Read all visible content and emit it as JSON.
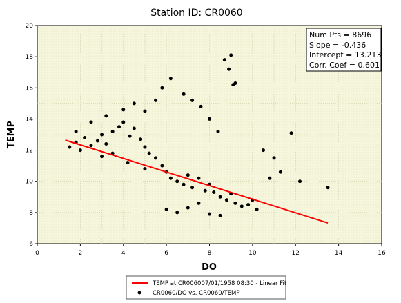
{
  "chart_data": {
    "type": "scatter",
    "title": "Station ID: CR0060",
    "xlabel": "DO",
    "ylabel": "TEMP",
    "xlim": [
      0,
      16
    ],
    "ylim": [
      6,
      20
    ],
    "xticks": [
      "0",
      "2",
      "4",
      "6",
      "8",
      "10",
      "12",
      "14",
      "16"
    ],
    "yticks": [
      "6",
      "8",
      "10",
      "12",
      "14",
      "16",
      "18",
      "20"
    ],
    "grid": true,
    "legend_position": "bottom",
    "stats": [
      "Num Pts = 8696",
      "Slope = -0.436",
      "Intercept = 13.213",
      "Corr. Coef = 0.601"
    ],
    "series": [
      {
        "name": "TEMP at CR006007/01/1958 08:30 - Linear Fit",
        "type": "line",
        "color": "#ff0000",
        "slope": -0.436,
        "intercept": 13.213,
        "x": [
          1.3,
          13.5
        ]
      },
      {
        "name": "CR0060/DO vs. CR0060/TEMP",
        "type": "scatter",
        "color": "#000000",
        "x": [
          1.5,
          1.8,
          2.0,
          2.2,
          2.5,
          2.8,
          3.0,
          3.2,
          3.5,
          3.8,
          4.0,
          4.3,
          4.5,
          4.8,
          5.0,
          5.2,
          5.5,
          5.8,
          6.0,
          6.2,
          6.5,
          6.8,
          7.0,
          7.2,
          7.5,
          7.8,
          8.0,
          8.2,
          8.5,
          8.8,
          9.0,
          9.2,
          9.5,
          9.8,
          10.0,
          10.2,
          1.8,
          2.5,
          3.2,
          4.0,
          4.5,
          5.0,
          5.5,
          5.8,
          6.2,
          6.8,
          7.2,
          7.6,
          8.0,
          8.4,
          8.7,
          9.0,
          9.2,
          8.9,
          9.1,
          10.5,
          11.0,
          11.3,
          10.8,
          11.8,
          12.2,
          13.5,
          6.0,
          6.5,
          7.0,
          7.5,
          8.0,
          8.5,
          5.0,
          4.2,
          3.5,
          3.0
        ],
        "y": [
          12.2,
          12.5,
          12.0,
          12.8,
          12.3,
          12.6,
          13.0,
          12.4,
          13.2,
          13.5,
          13.8,
          12.9,
          13.4,
          12.7,
          12.2,
          11.8,
          11.5,
          11.0,
          10.6,
          10.2,
          10.0,
          9.8,
          10.4,
          9.6,
          10.2,
          9.4,
          9.8,
          9.3,
          9.0,
          8.8,
          9.2,
          8.6,
          8.4,
          8.5,
          8.8,
          8.2,
          13.2,
          13.8,
          14.2,
          14.6,
          15.0,
          14.5,
          15.2,
          16.0,
          16.6,
          15.6,
          15.2,
          14.8,
          14.0,
          13.2,
          17.8,
          18.1,
          16.3,
          17.2,
          16.2,
          12.0,
          11.5,
          10.6,
          10.2,
          13.1,
          10.0,
          9.6,
          8.2,
          8.0,
          8.3,
          8.6,
          7.9,
          7.8,
          10.8,
          11.2,
          11.8,
          11.6
        ]
      }
    ]
  }
}
